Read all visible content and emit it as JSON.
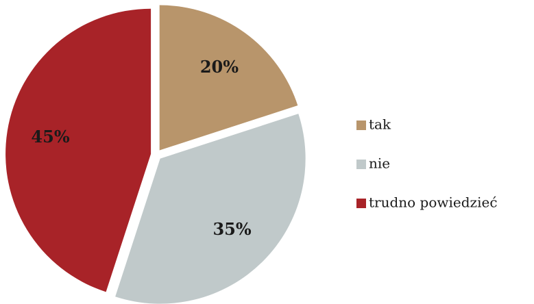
{
  "chart_data": {
    "type": "pie",
    "categories": [
      "tak",
      "nie",
      "trudno powiedzieć"
    ],
    "values": [
      20,
      35,
      45
    ],
    "value_labels": [
      "20%",
      "35%",
      "45%"
    ],
    "colors": [
      "#b8956b",
      "#c0c9ca",
      "#a82328"
    ],
    "legend": "right"
  }
}
